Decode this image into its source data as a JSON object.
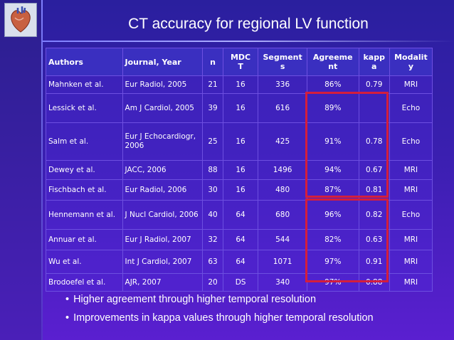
{
  "title": "CT accuracy for regional LV function",
  "logo_icon": "heart-anatomy-icon",
  "highlight_color": "#d41e3c",
  "headers": [
    "Authors",
    "Journal, Year",
    "n",
    "MDC\nT",
    "Segment\ns",
    "Agreeme\nnt",
    "kapp\na",
    "Modalit\ny"
  ],
  "rows": [
    [
      "Mahnken et al.",
      "Eur Radiol, 2005",
      "21",
      "16",
      "336",
      "86%",
      "0.79",
      "MRI"
    ],
    [
      "Lessick et al.",
      "Am J Cardiol, 2005",
      "39",
      "16",
      "616",
      "89%",
      "",
      "Echo"
    ],
    [
      "Salm et al.",
      "Eur J Echocardiogr, 2006",
      "25",
      "16",
      "425",
      "91%",
      "0.78",
      "Echo"
    ],
    [
      "Dewey et al.",
      "JACC, 2006",
      "88",
      "16",
      "1496",
      "94%",
      "0.67",
      "MRI"
    ],
    [
      "Fischbach et al.",
      "Eur Radiol, 2006",
      "30",
      "16",
      "480",
      "87%",
      "0.81",
      "MRI"
    ],
    [
      "Hennemann et al.",
      "J Nucl Cardiol, 2006",
      "40",
      "64",
      "680",
      "96%",
      "0.82",
      "Echo"
    ],
    [
      "Annuar et al.",
      "Eur J Radiol, 2007",
      "32",
      "64",
      "544",
      "82%",
      "0.63",
      "MRI"
    ],
    [
      "Wu et al.",
      "Int J Cardiol, 2007",
      "63",
      "64",
      "1071",
      "97%",
      "0.91",
      "MRI"
    ],
    [
      "Brodoefel et al.",
      "AJR, 2007",
      "20",
      "DS",
      "340",
      "97%",
      "0.88",
      "MRI"
    ]
  ],
  "bullets": [
    "Higher agreement through higher temporal resolution",
    "Improvements in kappa values through higher temporal resolution"
  ]
}
